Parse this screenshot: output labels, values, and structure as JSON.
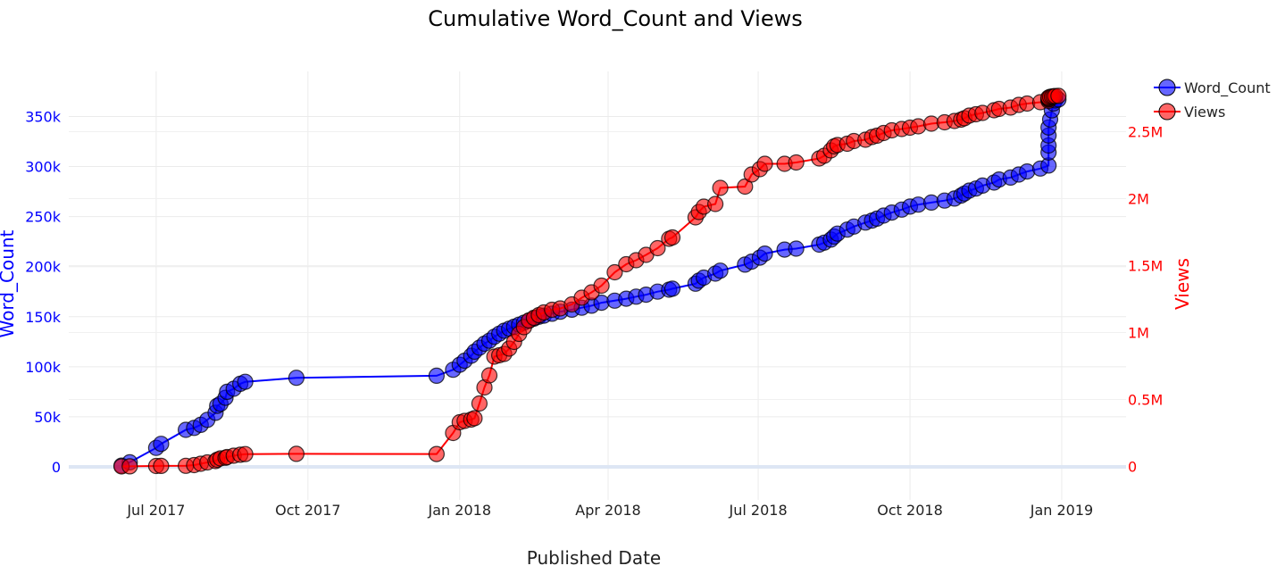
{
  "chart_data": {
    "type": "line",
    "title": "Cumulative Word_Count and Views",
    "xlabel": "Published Date",
    "ylabel_left": "Word_Count",
    "ylabel_right": "Views",
    "x_ticks": [
      {
        "date": "2017-07-01",
        "label": "Jul 2017"
      },
      {
        "date": "2017-10-01",
        "label": "Oct 2017"
      },
      {
        "date": "2018-01-01",
        "label": "Jan 2018"
      },
      {
        "date": "2018-04-01",
        "label": "Apr 2018"
      },
      {
        "date": "2018-07-01",
        "label": "Jul 2018"
      },
      {
        "date": "2018-10-01",
        "label": "Oct 2018"
      },
      {
        "date": "2019-01-01",
        "label": "Jan 2019"
      }
    ],
    "y_left_ticks": [
      {
        "value": 0,
        "label": "0"
      },
      {
        "value": 50000,
        "label": "50k"
      },
      {
        "value": 100000,
        "label": "100k"
      },
      {
        "value": 150000,
        "label": "150k"
      },
      {
        "value": 200000,
        "label": "200k"
      },
      {
        "value": 250000,
        "label": "250k"
      },
      {
        "value": 300000,
        "label": "300k"
      },
      {
        "value": 350000,
        "label": "350k"
      }
    ],
    "y_right_ticks": [
      {
        "value": 0,
        "label": "0"
      },
      {
        "value": 500000,
        "label": "0.5M"
      },
      {
        "value": 1000000,
        "label": "1M"
      },
      {
        "value": 1500000,
        "label": "1.5M"
      },
      {
        "value": 2000000,
        "label": "2M"
      },
      {
        "value": 2500000,
        "label": "2.5M"
      }
    ],
    "xlim": [
      "2017-05-09",
      "2019-02-09"
    ],
    "ylim_left": [
      -33000,
      395000
    ],
    "ylim_right": [
      -250000,
      2950000
    ],
    "grid": true,
    "legend_position": "top-right",
    "series": [
      {
        "name": "Word_Count",
        "axis": "left",
        "color": "#0000ff",
        "points": [
          [
            "2017-06-10",
            1200
          ],
          [
            "2017-06-15",
            4500
          ],
          [
            "2017-07-01",
            19000
          ],
          [
            "2017-07-04",
            23000
          ],
          [
            "2017-07-19",
            37000
          ],
          [
            "2017-07-24",
            39000
          ],
          [
            "2017-07-28",
            42000
          ],
          [
            "2017-08-01",
            47000
          ],
          [
            "2017-08-06",
            54000
          ],
          [
            "2017-08-07",
            61000
          ],
          [
            "2017-08-09",
            63000
          ],
          [
            "2017-08-12",
            69000
          ],
          [
            "2017-08-13",
            75000
          ],
          [
            "2017-08-17",
            78000
          ],
          [
            "2017-08-21",
            83000
          ],
          [
            "2017-08-24",
            85000
          ],
          [
            "2017-09-24",
            89000
          ],
          [
            "2017-12-18",
            91000
          ],
          [
            "2017-12-28",
            97000
          ],
          [
            "2018-01-01",
            102000
          ],
          [
            "2018-01-04",
            106000
          ],
          [
            "2018-01-08",
            111000
          ],
          [
            "2018-01-10",
            115000
          ],
          [
            "2018-01-13",
            119000
          ],
          [
            "2018-01-16",
            123000
          ],
          [
            "2018-01-19",
            126000
          ],
          [
            "2018-01-22",
            130000
          ],
          [
            "2018-01-25",
            133000
          ],
          [
            "2018-01-28",
            136000
          ],
          [
            "2018-01-31",
            138000
          ],
          [
            "2018-02-03",
            140000
          ],
          [
            "2018-02-06",
            142000
          ],
          [
            "2018-02-09",
            144000
          ],
          [
            "2018-02-12",
            146000
          ],
          [
            "2018-02-15",
            148000
          ],
          [
            "2018-02-18",
            150000
          ],
          [
            "2018-02-21",
            151000
          ],
          [
            "2018-02-26",
            153000
          ],
          [
            "2018-03-03",
            155000
          ],
          [
            "2018-03-10",
            157000
          ],
          [
            "2018-03-16",
            159000
          ],
          [
            "2018-03-22",
            161000
          ],
          [
            "2018-03-28",
            164000
          ],
          [
            "2018-04-05",
            166000
          ],
          [
            "2018-04-12",
            168000
          ],
          [
            "2018-04-18",
            170000
          ],
          [
            "2018-04-24",
            172000
          ],
          [
            "2018-05-01",
            175000
          ],
          [
            "2018-05-08",
            177000
          ],
          [
            "2018-05-10",
            178000
          ],
          [
            "2018-05-24",
            183000
          ],
          [
            "2018-05-26",
            186000
          ],
          [
            "2018-05-29",
            189000
          ],
          [
            "2018-06-05",
            193000
          ],
          [
            "2018-06-08",
            196000
          ],
          [
            "2018-06-23",
            202000
          ],
          [
            "2018-06-27",
            205000
          ],
          [
            "2018-07-02",
            209000
          ],
          [
            "2018-07-05",
            213000
          ],
          [
            "2018-07-17",
            217000
          ],
          [
            "2018-07-24",
            218000
          ],
          [
            "2018-08-07",
            222000
          ],
          [
            "2018-08-10",
            224000
          ],
          [
            "2018-08-14",
            227000
          ],
          [
            "2018-08-16",
            230000
          ],
          [
            "2018-08-18",
            233000
          ],
          [
            "2018-08-24",
            237000
          ],
          [
            "2018-08-28",
            240000
          ],
          [
            "2018-09-04",
            244000
          ],
          [
            "2018-09-08",
            246000
          ],
          [
            "2018-09-11",
            248000
          ],
          [
            "2018-09-15",
            251000
          ],
          [
            "2018-09-20",
            254000
          ],
          [
            "2018-09-26",
            257000
          ],
          [
            "2018-10-01",
            260000
          ],
          [
            "2018-10-06",
            262000
          ],
          [
            "2018-10-14",
            264000
          ],
          [
            "2018-10-22",
            266000
          ],
          [
            "2018-10-28",
            268000
          ],
          [
            "2018-11-01",
            271000
          ],
          [
            "2018-11-03",
            273000
          ],
          [
            "2018-11-06",
            276000
          ],
          [
            "2018-11-10",
            278000
          ],
          [
            "2018-11-14",
            281000
          ],
          [
            "2018-11-21",
            284000
          ],
          [
            "2018-11-24",
            287000
          ],
          [
            "2018-12-01",
            289000
          ],
          [
            "2018-12-06",
            292000
          ],
          [
            "2018-12-11",
            295000
          ],
          [
            "2018-12-19",
            298000
          ],
          [
            "2018-12-24",
            301000
          ],
          [
            "2018-12-24",
            314000
          ],
          [
            "2018-12-24",
            321000
          ],
          [
            "2018-12-24",
            331000
          ],
          [
            "2018-12-24",
            339000
          ],
          [
            "2018-12-25",
            347000
          ],
          [
            "2018-12-26",
            356000
          ],
          [
            "2018-12-27",
            363000
          ],
          [
            "2018-12-28",
            366000
          ],
          [
            "2018-12-30",
            367000
          ]
        ]
      },
      {
        "name": "Views",
        "axis": "right",
        "color": "#ff0000",
        "points": [
          [
            "2017-06-10",
            0
          ],
          [
            "2017-06-15",
            1000
          ],
          [
            "2017-07-01",
            3000
          ],
          [
            "2017-07-04",
            4000
          ],
          [
            "2017-07-19",
            5000
          ],
          [
            "2017-07-24",
            10000
          ],
          [
            "2017-07-28",
            20000
          ],
          [
            "2017-08-01",
            30000
          ],
          [
            "2017-08-06",
            40000
          ],
          [
            "2017-08-07",
            50000
          ],
          [
            "2017-08-09",
            60000
          ],
          [
            "2017-08-12",
            65000
          ],
          [
            "2017-08-13",
            70000
          ],
          [
            "2017-08-17",
            80000
          ],
          [
            "2017-08-21",
            87000
          ],
          [
            "2017-08-24",
            92000
          ],
          [
            "2017-09-24",
            94000
          ],
          [
            "2017-12-18",
            93000
          ],
          [
            "2017-12-28",
            250000
          ],
          [
            "2018-01-01",
            330000
          ],
          [
            "2018-01-04",
            340000
          ],
          [
            "2018-01-08",
            350000
          ],
          [
            "2018-01-10",
            360000
          ],
          [
            "2018-01-13",
            470000
          ],
          [
            "2018-01-16",
            590000
          ],
          [
            "2018-01-19",
            680000
          ],
          [
            "2018-01-22",
            820000
          ],
          [
            "2018-01-25",
            830000
          ],
          [
            "2018-01-28",
            840000
          ],
          [
            "2018-01-31",
            880000
          ],
          [
            "2018-02-03",
            930000
          ],
          [
            "2018-02-06",
            990000
          ],
          [
            "2018-02-09",
            1040000
          ],
          [
            "2018-02-12",
            1090000
          ],
          [
            "2018-02-15",
            1110000
          ],
          [
            "2018-02-18",
            1130000
          ],
          [
            "2018-02-21",
            1150000
          ],
          [
            "2018-02-26",
            1170000
          ],
          [
            "2018-03-03",
            1180000
          ],
          [
            "2018-03-10",
            1210000
          ],
          [
            "2018-03-16",
            1260000
          ],
          [
            "2018-03-22",
            1300000
          ],
          [
            "2018-03-28",
            1350000
          ],
          [
            "2018-04-05",
            1450000
          ],
          [
            "2018-04-12",
            1510000
          ],
          [
            "2018-04-18",
            1540000
          ],
          [
            "2018-04-24",
            1580000
          ],
          [
            "2018-05-01",
            1630000
          ],
          [
            "2018-05-08",
            1700000
          ],
          [
            "2018-05-10",
            1710000
          ],
          [
            "2018-05-24",
            1860000
          ],
          [
            "2018-05-26",
            1900000
          ],
          [
            "2018-05-29",
            1940000
          ],
          [
            "2018-06-05",
            1960000
          ],
          [
            "2018-06-08",
            2080000
          ],
          [
            "2018-06-23",
            2090000
          ],
          [
            "2018-06-27",
            2180000
          ],
          [
            "2018-07-02",
            2220000
          ],
          [
            "2018-07-05",
            2260000
          ],
          [
            "2018-07-17",
            2260000
          ],
          [
            "2018-07-24",
            2270000
          ],
          [
            "2018-08-07",
            2300000
          ],
          [
            "2018-08-10",
            2320000
          ],
          [
            "2018-08-14",
            2360000
          ],
          [
            "2018-08-16",
            2390000
          ],
          [
            "2018-08-18",
            2400000
          ],
          [
            "2018-08-24",
            2410000
          ],
          [
            "2018-08-28",
            2430000
          ],
          [
            "2018-09-04",
            2440000
          ],
          [
            "2018-09-08",
            2460000
          ],
          [
            "2018-09-11",
            2470000
          ],
          [
            "2018-09-15",
            2490000
          ],
          [
            "2018-09-20",
            2510000
          ],
          [
            "2018-09-26",
            2520000
          ],
          [
            "2018-10-01",
            2530000
          ],
          [
            "2018-10-06",
            2540000
          ],
          [
            "2018-10-14",
            2560000
          ],
          [
            "2018-10-22",
            2570000
          ],
          [
            "2018-10-28",
            2580000
          ],
          [
            "2018-11-01",
            2590000
          ],
          [
            "2018-11-03",
            2600000
          ],
          [
            "2018-11-06",
            2620000
          ],
          [
            "2018-11-10",
            2630000
          ],
          [
            "2018-11-14",
            2640000
          ],
          [
            "2018-11-21",
            2660000
          ],
          [
            "2018-11-24",
            2670000
          ],
          [
            "2018-12-01",
            2680000
          ],
          [
            "2018-12-06",
            2700000
          ],
          [
            "2018-12-11",
            2710000
          ],
          [
            "2018-12-19",
            2720000
          ],
          [
            "2018-12-24",
            2730000
          ],
          [
            "2018-12-24",
            2740000
          ],
          [
            "2018-12-24",
            2745000
          ],
          [
            "2018-12-24",
            2750000
          ],
          [
            "2018-12-24",
            2755000
          ],
          [
            "2018-12-25",
            2760000
          ],
          [
            "2018-12-26",
            2762000
          ],
          [
            "2018-12-27",
            2764000
          ],
          [
            "2018-12-28",
            2766000
          ],
          [
            "2018-12-30",
            2767000
          ]
        ]
      }
    ]
  }
}
